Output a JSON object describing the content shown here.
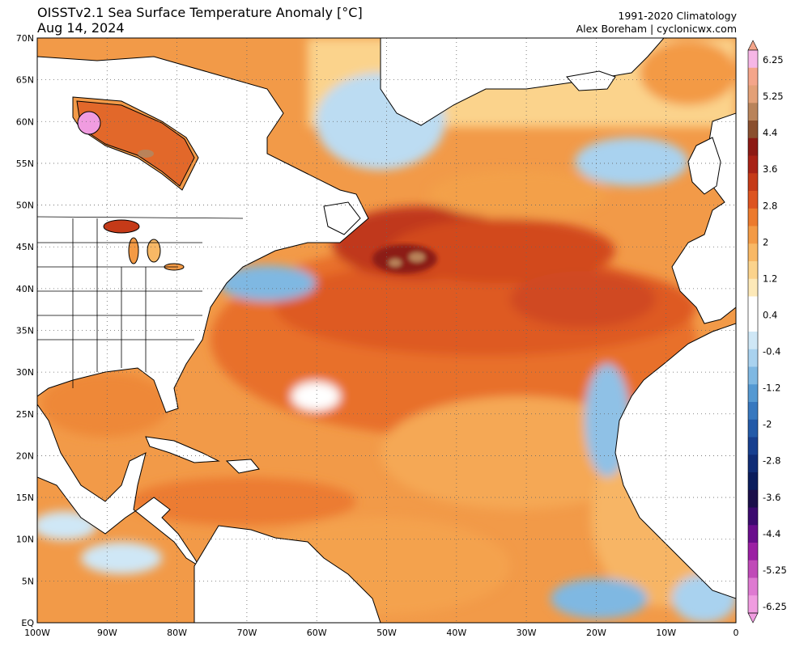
{
  "header": {
    "title": "OISSTv2.1 Sea Surface Temperature Anomaly [°C]",
    "date": "Aug 14, 2024",
    "climatology": "1991-2020 Climatology",
    "credit": "Alex Boreham | cyclonicwx.com"
  },
  "map": {
    "lon_range": [
      -100,
      0
    ],
    "lat_range": [
      0,
      70
    ],
    "lon_ticks": [
      "100W",
      "90W",
      "80W",
      "70W",
      "60W",
      "50W",
      "40W",
      "30W",
      "20W",
      "10W",
      "0"
    ],
    "lat_ticks": [
      "EQ",
      "5N",
      "10N",
      "15N",
      "20N",
      "25N",
      "30N",
      "35N",
      "40N",
      "45N",
      "50N",
      "55N",
      "60N",
      "65N",
      "70N"
    ],
    "gridlines": "dotted"
  },
  "colorbar": {
    "labels": [
      "6.25",
      "5.25",
      "4.4",
      "3.6",
      "2.8",
      "2",
      "1.2",
      "0.4",
      "-0.4",
      "-1.2",
      "-2",
      "-2.8",
      "-3.6",
      "-4.4",
      "-5.25",
      "-6.25"
    ],
    "colors": [
      "#f6b6e6",
      "#f4a58a",
      "#e3a077",
      "#b9835a",
      "#8a4f2e",
      "#8c1a14",
      "#a82216",
      "#c53a18",
      "#dd5420",
      "#ec7a2d",
      "#f39a45",
      "#f8b865",
      "#fbd38c",
      "#fde9b8",
      "#ffffff",
      "#ffffff",
      "#cfe7f6",
      "#a9d2ef",
      "#7fb8e2",
      "#5599d2",
      "#3778bf",
      "#235aa8",
      "#173f8f",
      "#102c75",
      "#0b1d5c",
      "#1a0f4a",
      "#3b0a6e",
      "#6a0d8c",
      "#9b1fa3",
      "#c04ab8",
      "#de7ad1",
      "#f09ce0"
    ]
  },
  "regions": [
    {
      "name": "north-atlantic-warm-core",
      "color": "#b5361a"
    },
    {
      "name": "gulf-of-mexico",
      "color": "#f08a3a"
    },
    {
      "name": "caribbean",
      "color": "#ee7e32"
    },
    {
      "name": "labrador-cool",
      "color": "#7fb8e2"
    },
    {
      "name": "hudson-bay-warm",
      "color": "#cf4a1f"
    }
  ]
}
